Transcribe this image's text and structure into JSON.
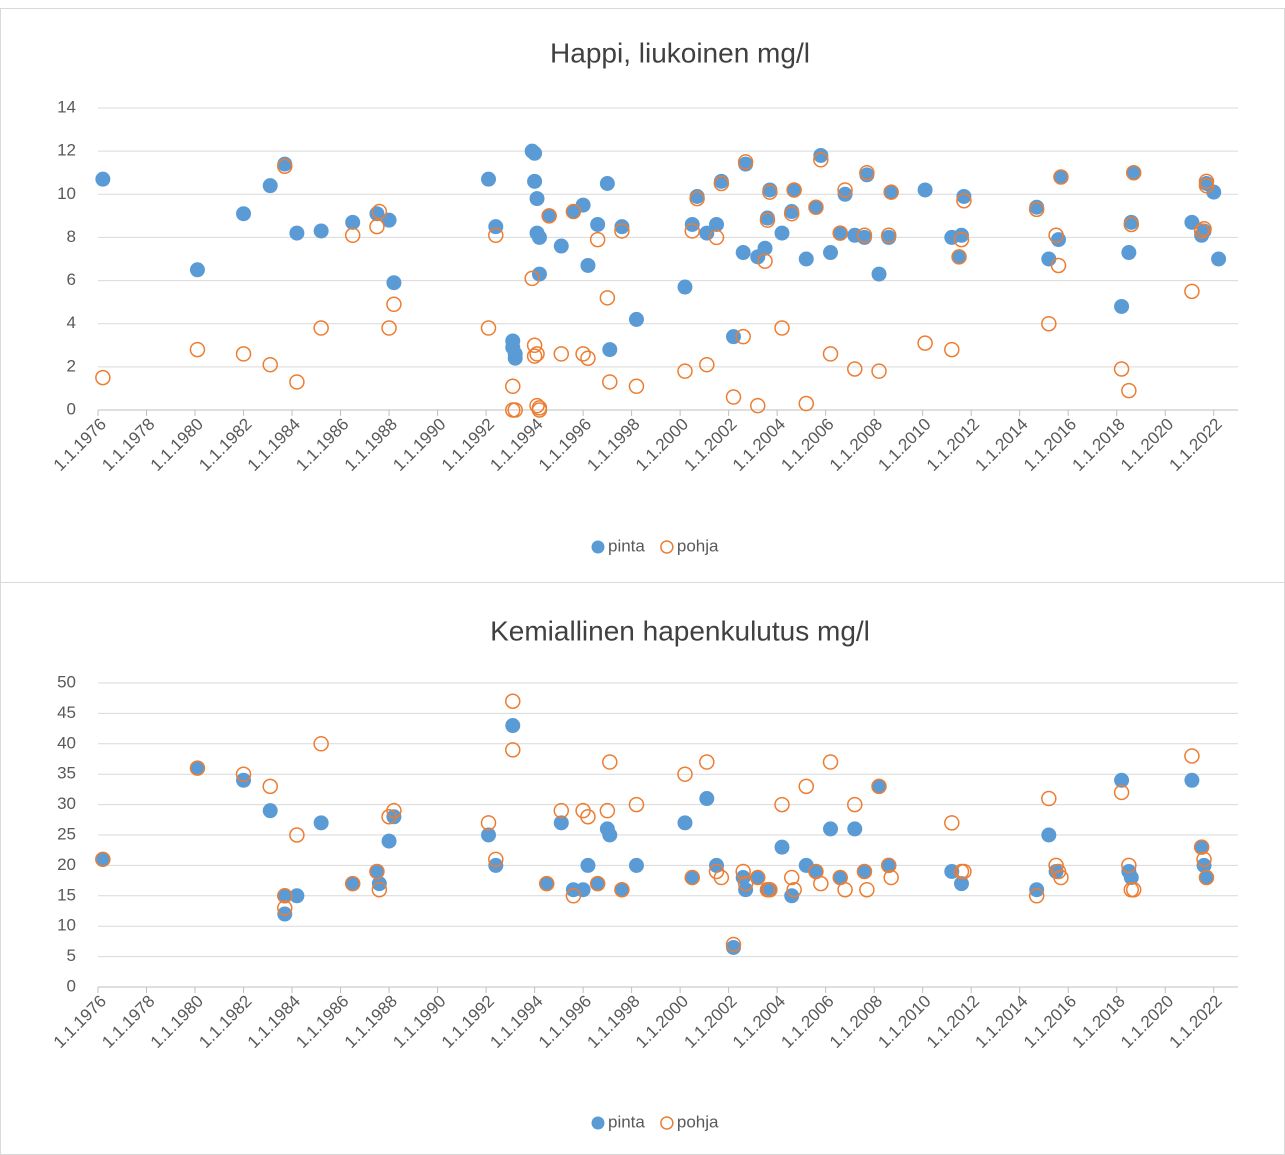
{
  "chart_data": [
    {
      "type": "scatter",
      "title": "Happi, liukoinen mg/l",
      "xlim": [
        1976,
        2023
      ],
      "xticks": [
        {
          "value": 1976,
          "label": "1.1.1976"
        },
        {
          "value": 1978,
          "label": "1.1.1978"
        },
        {
          "value": 1980,
          "label": "1.1.1980"
        },
        {
          "value": 1982,
          "label": "1.1.1982"
        },
        {
          "value": 1984,
          "label": "1.1.1984"
        },
        {
          "value": 1986,
          "label": "1.1.1986"
        },
        {
          "value": 1988,
          "label": "1.1.1988"
        },
        {
          "value": 1990,
          "label": "1.1.1990"
        },
        {
          "value": 1992,
          "label": "1.1.1992"
        },
        {
          "value": 1994,
          "label": "1.1.1994"
        },
        {
          "value": 1996,
          "label": "1.1.1996"
        },
        {
          "value": 1998,
          "label": "1.1.1998"
        },
        {
          "value": 2000,
          "label": "1.1.2000"
        },
        {
          "value": 2002,
          "label": "1.1.2002"
        },
        {
          "value": 2004,
          "label": "1.1.2004"
        },
        {
          "value": 2006,
          "label": "1.1.2006"
        },
        {
          "value": 2008,
          "label": "1.1.2008"
        },
        {
          "value": 2010,
          "label": "1.1.2010"
        },
        {
          "value": 2012,
          "label": "1.1.2012"
        },
        {
          "value": 2014,
          "label": "1.1.2014"
        },
        {
          "value": 2016,
          "label": "1.1.2016"
        },
        {
          "value": 2018,
          "label": "1.1.2018"
        },
        {
          "value": 2020,
          "label": "1.1.2020"
        },
        {
          "value": 2022,
          "label": "1.1.2022"
        }
      ],
      "ylim": [
        0,
        14
      ],
      "yticks": [
        0,
        2,
        4,
        6,
        8,
        10,
        12,
        14
      ],
      "grid": true,
      "legend": "bottom",
      "series": [
        {
          "name": "pinta",
          "color": "#5b9bd5",
          "marker": "filled",
          "x": [
            1976.2,
            1980.1,
            1982.0,
            1983.1,
            1983.7,
            1984.2,
            1985.2,
            1986.5,
            1987.5,
            1988.0,
            1988.2,
            1992.1,
            1992.4,
            1993.1,
            1993.1,
            1993.2,
            1993.2,
            1993.9,
            1994.0,
            1994.0,
            1994.1,
            1994.1,
            1994.2,
            1994.2,
            1994.6,
            1995.1,
            1995.6,
            1996.0,
            1996.2,
            1996.6,
            1997.0,
            1997.1,
            1997.6,
            1998.2,
            2000.2,
            2000.5,
            2000.7,
            2001.1,
            2001.5,
            2001.7,
            2002.2,
            2002.6,
            2002.7,
            2003.2,
            2003.5,
            2003.6,
            2003.7,
            2004.2,
            2004.6,
            2004.7,
            2005.2,
            2005.6,
            2005.8,
            2006.2,
            2006.6,
            2006.8,
            2007.2,
            2007.6,
            2007.7,
            2008.2,
            2008.6,
            2008.7,
            2010.1,
            2011.2,
            2011.5,
            2011.6,
            2011.7,
            2014.7,
            2015.2,
            2015.6,
            2015.7,
            2018.2,
            2018.5,
            2018.6,
            2018.7,
            2021.1,
            2021.5,
            2021.6,
            2021.7,
            2022.0,
            2022.2
          ],
          "values": [
            10.7,
            6.5,
            9.1,
            10.4,
            11.4,
            8.2,
            8.3,
            8.7,
            9.1,
            8.8,
            5.9,
            10.7,
            8.5,
            3.2,
            2.9,
            2.4,
            2.6,
            12.0,
            11.9,
            10.6,
            9.8,
            8.2,
            8.0,
            6.3,
            9.0,
            7.6,
            9.2,
            9.5,
            6.7,
            8.6,
            10.5,
            2.8,
            8.5,
            4.2,
            5.7,
            8.6,
            9.9,
            8.2,
            8.6,
            10.6,
            3.4,
            7.3,
            11.4,
            7.1,
            7.5,
            8.9,
            10.2,
            8.2,
            9.2,
            10.2,
            7.0,
            9.4,
            11.8,
            7.3,
            8.2,
            10.0,
            8.1,
            8.0,
            10.9,
            6.3,
            8.0,
            10.1,
            10.2,
            8.0,
            7.1,
            8.1,
            9.9,
            9.4,
            7.0,
            7.9,
            10.8,
            4.8,
            7.3,
            8.7,
            11.0,
            8.7,
            8.1,
            8.3,
            10.5,
            10.1,
            7.0
          ]
        },
        {
          "name": "pohja",
          "color": "#ed7d31",
          "marker": "open",
          "x": [
            1976.2,
            1980.1,
            1982.0,
            1983.1,
            1983.7,
            1984.2,
            1985.2,
            1986.5,
            1987.5,
            1987.6,
            1988.0,
            1988.2,
            1992.1,
            1992.4,
            1993.1,
            1993.1,
            1993.2,
            1993.9,
            1994.0,
            1994.0,
            1994.1,
            1994.1,
            1994.2,
            1994.2,
            1994.6,
            1995.1,
            1995.6,
            1996.0,
            1996.2,
            1996.6,
            1997.0,
            1997.1,
            1997.6,
            1998.2,
            2000.2,
            2000.5,
            2000.7,
            2001.1,
            2001.5,
            2001.7,
            2002.2,
            2002.6,
            2002.7,
            2003.2,
            2003.5,
            2003.6,
            2003.7,
            2004.2,
            2004.6,
            2004.7,
            2005.2,
            2005.6,
            2005.8,
            2006.2,
            2006.6,
            2006.8,
            2007.2,
            2007.6,
            2007.7,
            2008.2,
            2008.6,
            2008.7,
            2010.1,
            2011.2,
            2011.5,
            2011.6,
            2011.7,
            2014.7,
            2015.2,
            2015.5,
            2015.6,
            2015.7,
            2018.2,
            2018.5,
            2018.6,
            2018.7,
            2021.1,
            2021.5,
            2021.6,
            2021.7,
            2021.7
          ],
          "values": [
            1.5,
            2.8,
            2.6,
            2.1,
            11.3,
            1.3,
            3.8,
            8.1,
            8.5,
            9.2,
            3.8,
            4.9,
            3.8,
            8.1,
            1.1,
            0,
            0,
            6.1,
            3.0,
            2.5,
            2.6,
            0.2,
            0.1,
            0,
            9.0,
            2.6,
            9.2,
            2.6,
            2.4,
            7.9,
            5.2,
            1.3,
            8.3,
            1.1,
            1.8,
            8.3,
            9.8,
            2.1,
            8.0,
            10.5,
            0.6,
            3.4,
            11.5,
            0.2,
            6.9,
            8.8,
            10.1,
            3.8,
            9.1,
            10.2,
            0.3,
            9.4,
            11.6,
            2.6,
            8.2,
            10.2,
            1.9,
            8.1,
            11.0,
            1.8,
            8.1,
            10.1,
            3.1,
            2.8,
            7.1,
            7.9,
            9.7,
            9.3,
            4.0,
            8.1,
            6.7,
            10.8,
            1.9,
            0.9,
            8.6,
            11.0,
            5.5,
            8.3,
            8.4,
            10.6,
            10.4
          ]
        }
      ]
    },
    {
      "type": "scatter",
      "title": "Kemiallinen hapenkulutus mg/l",
      "xlim": [
        1976,
        2023
      ],
      "xticks": [
        {
          "value": 1976,
          "label": "1.1.1976"
        },
        {
          "value": 1978,
          "label": "1.1.1978"
        },
        {
          "value": 1980,
          "label": "1.1.1980"
        },
        {
          "value": 1982,
          "label": "1.1.1982"
        },
        {
          "value": 1984,
          "label": "1.1.1984"
        },
        {
          "value": 1986,
          "label": "1.1.1986"
        },
        {
          "value": 1988,
          "label": "1.1.1988"
        },
        {
          "value": 1990,
          "label": "1.1.1990"
        },
        {
          "value": 1992,
          "label": "1.1.1992"
        },
        {
          "value": 1994,
          "label": "1.1.1994"
        },
        {
          "value": 1996,
          "label": "1.1.1996"
        },
        {
          "value": 1998,
          "label": "1.1.1998"
        },
        {
          "value": 2000,
          "label": "1.1.2000"
        },
        {
          "value": 2002,
          "label": "1.1.2002"
        },
        {
          "value": 2004,
          "label": "1.1.2004"
        },
        {
          "value": 2006,
          "label": "1.1.2006"
        },
        {
          "value": 2008,
          "label": "1.1.2008"
        },
        {
          "value": 2010,
          "label": "1.1.2010"
        },
        {
          "value": 2012,
          "label": "1.1.2012"
        },
        {
          "value": 2014,
          "label": "1.1.2014"
        },
        {
          "value": 2016,
          "label": "1.1.2016"
        },
        {
          "value": 2018,
          "label": "1.1.2018"
        },
        {
          "value": 2020,
          "label": "1.1.2020"
        },
        {
          "value": 2022,
          "label": "1.1.2022"
        }
      ],
      "ylim": [
        0,
        50
      ],
      "yticks": [
        0,
        5,
        10,
        15,
        20,
        25,
        30,
        35,
        40,
        45,
        50
      ],
      "grid": true,
      "legend": "bottom",
      "series": [
        {
          "name": "pinta",
          "color": "#5b9bd5",
          "marker": "filled",
          "x": [
            1976.2,
            1980.1,
            1982.0,
            1983.1,
            1983.7,
            1983.7,
            1984.2,
            1985.2,
            1986.5,
            1987.5,
            1987.6,
            1988.0,
            1988.2,
            1992.1,
            1992.4,
            1993.1,
            1994.5,
            1995.1,
            1995.6,
            1996.0,
            1996.2,
            1996.6,
            1997.0,
            1997.1,
            1997.6,
            1998.2,
            2000.2,
            2000.5,
            2001.1,
            2001.5,
            2002.2,
            2002.6,
            2002.7,
            2003.2,
            2003.6,
            2003.7,
            2004.2,
            2004.6,
            2005.2,
            2005.6,
            2006.2,
            2006.6,
            2007.2,
            2007.6,
            2008.2,
            2008.6,
            2011.2,
            2011.6,
            2014.7,
            2015.2,
            2015.5,
            2018.2,
            2018.5,
            2018.6,
            2021.1,
            2021.5,
            2021.6,
            2021.7
          ],
          "values": [
            21,
            36,
            34,
            29,
            12,
            15,
            15,
            27,
            17,
            19,
            17,
            24,
            28,
            25,
            20,
            43,
            17,
            27,
            16,
            16,
            20,
            17,
            26,
            25,
            16,
            20,
            27,
            18,
            31,
            20,
            6.5,
            18,
            16,
            18,
            16,
            16,
            23,
            15,
            20,
            19,
            26,
            18,
            26,
            19,
            33,
            20,
            19,
            17,
            16,
            25,
            19,
            34,
            19,
            18,
            34,
            23,
            20,
            18
          ]
        },
        {
          "name": "pohja",
          "color": "#ed7d31",
          "marker": "open",
          "x": [
            1976.2,
            1980.1,
            1982.0,
            1983.1,
            1983.7,
            1983.7,
            1984.2,
            1985.2,
            1986.5,
            1987.5,
            1987.6,
            1988.0,
            1988.2,
            1992.1,
            1992.4,
            1993.1,
            1993.1,
            1994.5,
            1995.1,
            1995.6,
            1996.0,
            1996.2,
            1996.6,
            1997.0,
            1997.1,
            1997.6,
            1998.2,
            2000.2,
            2000.5,
            2001.1,
            2001.5,
            2001.7,
            2002.2,
            2002.6,
            2002.7,
            2003.2,
            2003.6,
            2003.7,
            2004.2,
            2004.6,
            2004.7,
            2005.2,
            2005.6,
            2005.8,
            2006.2,
            2006.6,
            2006.8,
            2007.2,
            2007.6,
            2007.7,
            2008.2,
            2008.6,
            2008.7,
            2011.2,
            2011.6,
            2011.7,
            2014.7,
            2015.2,
            2015.5,
            2015.6,
            2015.7,
            2018.2,
            2018.5,
            2018.6,
            2018.7,
            2021.1,
            2021.5,
            2021.6,
            2021.7
          ],
          "values": [
            21,
            36,
            35,
            33,
            15,
            13,
            25,
            40,
            17,
            19,
            16,
            28,
            29,
            27,
            21,
            47,
            39,
            17,
            29,
            15,
            29,
            28,
            17,
            29,
            37,
            16,
            30,
            35,
            18,
            37,
            19,
            18,
            7,
            19,
            17,
            18,
            16,
            16,
            30,
            18,
            16,
            33,
            19,
            17,
            37,
            18,
            16,
            30,
            19,
            16,
            33,
            20,
            18,
            27,
            19,
            19,
            15,
            31,
            20,
            19,
            18,
            32,
            20,
            16,
            16,
            38,
            23,
            21,
            18
          ]
        }
      ]
    }
  ]
}
